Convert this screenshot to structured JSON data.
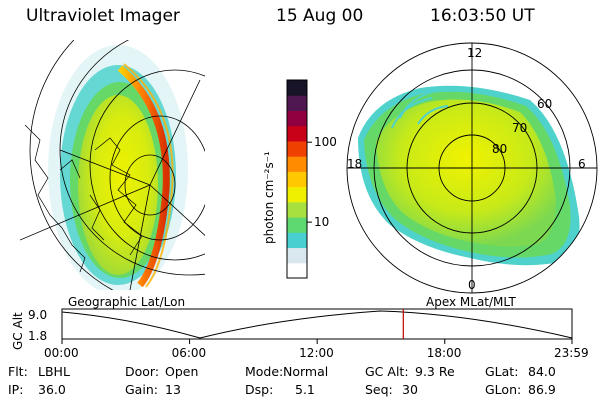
{
  "header": {
    "instrument": "Ultraviolet Imager",
    "date": "15 Aug 00",
    "time": "16:03:50 UT"
  },
  "colors": {
    "colorbar": [
      "#ffffff",
      "#d8e8ee",
      "#48d0d0",
      "#5ed870",
      "#a8e040",
      "#eef000",
      "#ffc800",
      "#ff8c00",
      "#f04000",
      "#c80018",
      "#900040",
      "#501850",
      "#181428"
    ]
  },
  "colorbar": {
    "unit_label": "photon cm⁻²s⁻¹",
    "ticks": [
      {
        "label": "100",
        "value": 100
      },
      {
        "label": "10",
        "value": 10
      }
    ]
  },
  "left_panel": {
    "caption": "Geographic Lat/Lon"
  },
  "right_panel": {
    "caption": "Apex MLat/MLT",
    "mlt_labels": [
      "12",
      "18",
      "6",
      "0"
    ],
    "mlat_labels": [
      "60",
      "70",
      "80"
    ]
  },
  "altitude_plot": {
    "ylabel": "GC Alt",
    "yticks": [
      "9.0",
      "1.8"
    ],
    "xticks": [
      "00:00",
      "06:00",
      "12:00",
      "18:00",
      "23:59"
    ],
    "marker_time": "16:03",
    "marker_color": "#c00000"
  },
  "info": {
    "row1": [
      {
        "key": "Flt:",
        "value": "LBHL"
      },
      {
        "key": "Door:",
        "value": "Open"
      },
      {
        "key": "Mode:",
        "value": "Normal"
      },
      {
        "key": "GC Alt:",
        "value": "9.3 Re"
      },
      {
        "key": "GLat:",
        "value": "84.0"
      }
    ],
    "row2": [
      {
        "key": "IP:",
        "value": "36.0"
      },
      {
        "key": "Gain:",
        "value": "13"
      },
      {
        "key": "Dsp:",
        "value": "5.1"
      },
      {
        "key": "Seq:",
        "value": "30"
      },
      {
        "key": "GLon:",
        "value": "86.9"
      }
    ]
  }
}
